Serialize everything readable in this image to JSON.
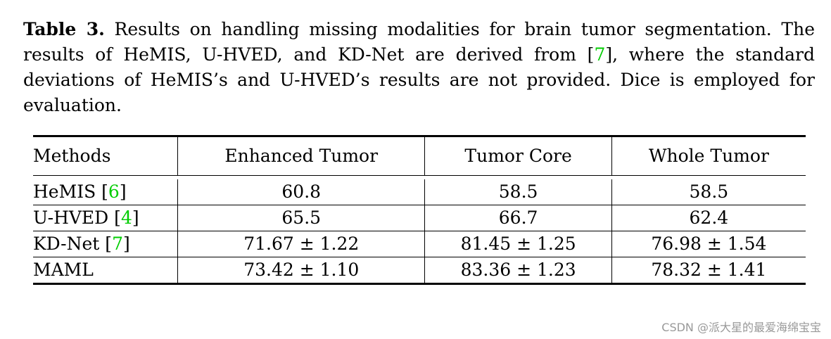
{
  "caption": {
    "label": "Table 3.",
    "text_before_cite": " Results on handling missing modalities for brain tumor segmentation. The results of HeMIS, U-HVED, and KD-Net are derived from [",
    "cite": "7",
    "text_after_cite": "], where the standard deviations of HeMIS’s and U-HVED’s results are not provided. Dice is employed for evaluation."
  },
  "table": {
    "headers": [
      "Methods",
      "Enhanced Tumor",
      "Tumor Core",
      "Whole Tumor"
    ],
    "rows": [
      {
        "method": "HeMIS [",
        "cite": "6",
        "close": "]",
        "values": [
          "60.8",
          "58.5",
          "58.5"
        ],
        "bold": false
      },
      {
        "method": "U-HVED [",
        "cite": "4",
        "close": "]",
        "values": [
          "65.5",
          "66.7",
          "62.4"
        ],
        "bold": false
      },
      {
        "method": "KD-Net [",
        "cite": "7",
        "close": "]",
        "values": [
          "71.67 ± 1.22",
          "81.45 ± 1.25",
          "76.98 ± 1.54"
        ],
        "bold": false
      },
      {
        "method": "MAML",
        "cite": "",
        "close": "",
        "values": [
          "73.42 ± 1.10",
          "83.36 ± 1.23",
          "78.32 ± 1.41"
        ],
        "bold": true
      }
    ]
  },
  "watermark": "CSDN @派大星的最爱海绵宝宝",
  "colors": {
    "citation": "#00cc00",
    "watermark": "#999999"
  }
}
